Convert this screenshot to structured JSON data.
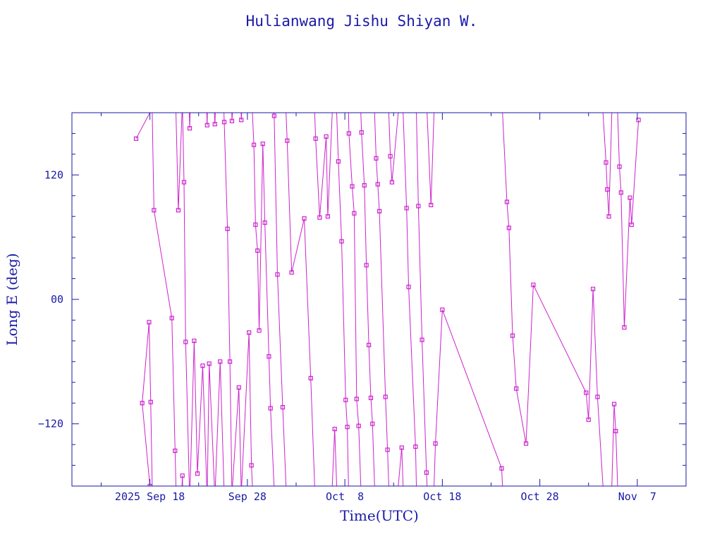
{
  "chart_data": {
    "type": "line",
    "title": "Hulianwang Jishu Shiyan W.",
    "xlabel": "Time(UTC)",
    "ylabel": "Long E (deg)",
    "x_ticks": [
      "2025 Sep 18",
      "Sep 28",
      "Oct  8",
      "Oct 18",
      "Oct 28",
      "Nov  7"
    ],
    "y_ticks": [
      "120",
      "00",
      "−120"
    ],
    "xlim": [
      "2025-09-10",
      "2025-11-12"
    ],
    "ylim": [
      -180,
      180
    ],
    "y_tick_values": [
      120,
      0,
      -120
    ],
    "colors": {
      "axes": "#1a1aa6",
      "series": "#cc22cc"
    },
    "series": [
      {
        "values": [
          {
            "x": "2025-09-16T14:00",
            "y": 155
          },
          {
            "x": "2025-09-18T00:00",
            "y": -180
          },
          {
            "x": "2025-09-17T05:00",
            "y": -100
          },
          {
            "x": "2025-09-17T22:00",
            "y": -22
          },
          {
            "x": "2025-09-18T02:00",
            "y": -99
          },
          {
            "x": "2025-09-18T10:00",
            "y": 86
          },
          {
            "x": "2025-09-20T06:00",
            "y": -18
          },
          {
            "x": "2025-09-20T14:00",
            "y": -146
          },
          {
            "x": "2025-09-20T22:00",
            "y": 86
          },
          {
            "x": "2025-09-21T08:00",
            "y": -170
          },
          {
            "x": "2025-09-21T12:00",
            "y": 113
          },
          {
            "x": "2025-09-21T16:00",
            "y": -41
          },
          {
            "x": "2025-09-22T02:00",
            "y": 165
          },
          {
            "x": "2025-09-22T13:00",
            "y": -40
          },
          {
            "x": "2025-09-22T21:00",
            "y": -168
          },
          {
            "x": "2025-09-23T10:00",
            "y": -64
          },
          {
            "x": "2025-09-23T21:00",
            "y": 168
          },
          {
            "x": "2025-09-24T02:00",
            "y": -62
          },
          {
            "x": "2025-09-24T16:00",
            "y": 169
          },
          {
            "x": "2025-09-25T05:00",
            "y": -60
          },
          {
            "x": "2025-09-25T15:00",
            "y": 171
          },
          {
            "x": "2025-09-25T23:00",
            "y": 68
          },
          {
            "x": "2025-09-26T05:00",
            "y": -60
          },
          {
            "x": "2025-09-26T10:00",
            "y": 172
          },
          {
            "x": "2025-09-27T03:00",
            "y": -85
          },
          {
            "x": "2025-09-27T09:00",
            "y": 173
          },
          {
            "x": "2025-09-28T04:00",
            "y": -32
          },
          {
            "x": "2025-09-28T10:00",
            "y": -160
          },
          {
            "x": "2025-09-28T16:00",
            "y": 149
          },
          {
            "x": "2025-09-28T20:00",
            "y": 72
          },
          {
            "x": "2025-09-29T01:00",
            "y": 47
          },
          {
            "x": "2025-09-29T05:00",
            "y": -30
          },
          {
            "x": "2025-09-29T14:00",
            "y": 150
          },
          {
            "x": "2025-09-29T19:00",
            "y": 74
          },
          {
            "x": "2025-09-30T05:00",
            "y": -55
          },
          {
            "x": "2025-09-30T09:00",
            "y": -105
          },
          {
            "x": "2025-09-30T18:00",
            "y": 177
          },
          {
            "x": "2025-10-01T02:00",
            "y": 24
          },
          {
            "x": "2025-10-01T15:00",
            "y": -104
          },
          {
            "x": "2025-10-02T02:00",
            "y": 153
          },
          {
            "x": "2025-10-02T13:00",
            "y": 26
          },
          {
            "x": "2025-10-03T20:00",
            "y": 78
          },
          {
            "x": "2025-10-04T12:00",
            "y": -76
          },
          {
            "x": "2025-10-05T00:00",
            "y": 155
          },
          {
            "x": "2025-10-05T10:00",
            "y": 79
          },
          {
            "x": "2025-10-06T02:00",
            "y": 157
          },
          {
            "x": "2025-10-06T06:00",
            "y": 80
          },
          {
            "x": "2025-10-06T23:00",
            "y": -125
          },
          {
            "x": "2025-10-07T08:00",
            "y": 133
          },
          {
            "x": "2025-10-07T16:00",
            "y": 56
          },
          {
            "x": "2025-10-08T02:00",
            "y": -97
          },
          {
            "x": "2025-10-08T06:00",
            "y": -123
          },
          {
            "x": "2025-10-08T10:00",
            "y": 160
          },
          {
            "x": "2025-10-08T18:00",
            "y": 109
          },
          {
            "x": "2025-10-08T23:00",
            "y": 83
          },
          {
            "x": "2025-10-09T05:00",
            "y": -96
          },
          {
            "x": "2025-10-09T10:00",
            "y": -122
          },
          {
            "x": "2025-10-09T17:00",
            "y": 161
          },
          {
            "x": "2025-10-10T00:00",
            "y": 110
          },
          {
            "x": "2025-10-10T05:00",
            "y": 33
          },
          {
            "x": "2025-10-10T11:00",
            "y": -44
          },
          {
            "x": "2025-10-10T16:00",
            "y": -95
          },
          {
            "x": "2025-10-10T20:00",
            "y": -120
          },
          {
            "x": "2025-10-11T05:00",
            "y": 136
          },
          {
            "x": "2025-10-11T09:00",
            "y": 111
          },
          {
            "x": "2025-10-11T13:00",
            "y": 85
          },
          {
            "x": "2025-10-12T04:00",
            "y": -94
          },
          {
            "x": "2025-10-12T09:00",
            "y": -145
          },
          {
            "x": "2025-10-12T16:00",
            "y": 138
          },
          {
            "x": "2025-10-12T20:00",
            "y": 113
          },
          {
            "x": "2025-10-13T20:00",
            "y": -143
          },
          {
            "x": "2025-10-14T08:00",
            "y": 88
          },
          {
            "x": "2025-10-14T13:00",
            "y": 12
          },
          {
            "x": "2025-10-15T06:00",
            "y": -142
          },
          {
            "x": "2025-10-15T13:00",
            "y": 90
          },
          {
            "x": "2025-10-15T22:00",
            "y": -39
          },
          {
            "x": "2025-10-16T09:00",
            "y": -167
          },
          {
            "x": "2025-10-16T20:00",
            "y": 91
          },
          {
            "x": "2025-10-17T07:00",
            "y": -139
          },
          {
            "x": "2025-10-18T00:00",
            "y": -10
          },
          {
            "x": "2025-10-24T02:00",
            "y": -163
          },
          {
            "x": "2025-10-24T15:00",
            "y": 94
          },
          {
            "x": "2025-10-24T20:00",
            "y": 69
          },
          {
            "x": "2025-10-25T05:00",
            "y": -35
          },
          {
            "x": "2025-10-25T14:00",
            "y": -86
          },
          {
            "x": "2025-10-26T14:00",
            "y": -139
          },
          {
            "x": "2025-10-27T08:00",
            "y": 14
          },
          {
            "x": "2025-11-01T18:00",
            "y": -90
          },
          {
            "x": "2025-11-02T00:00",
            "y": -116
          },
          {
            "x": "2025-11-02T11:00",
            "y": 10
          },
          {
            "x": "2025-11-02T22:00",
            "y": -94
          },
          {
            "x": "2025-11-03T19:00",
            "y": 132
          },
          {
            "x": "2025-11-03T22:00",
            "y": 106
          },
          {
            "x": "2025-11-04T02:00",
            "y": 80
          },
          {
            "x": "2025-11-04T15:00",
            "y": -101
          },
          {
            "x": "2025-11-04T19:00",
            "y": -127
          },
          {
            "x": "2025-11-05T04:00",
            "y": 128
          },
          {
            "x": "2025-11-05T08:00",
            "y": 103
          },
          {
            "x": "2025-11-05T16:00",
            "y": -27
          },
          {
            "x": "2025-11-06T06:00",
            "y": 98
          },
          {
            "x": "2025-11-06T10:00",
            "y": 72
          },
          {
            "x": "2025-11-07T03:00",
            "y": 173
          }
        ]
      }
    ]
  }
}
